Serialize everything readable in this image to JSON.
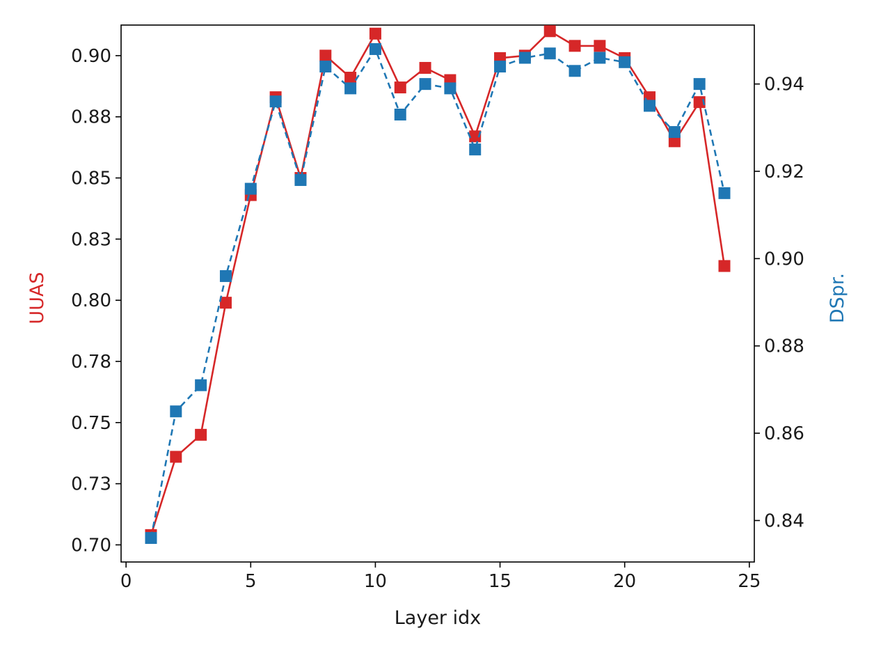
{
  "chart_data": {
    "type": "line",
    "title": "",
    "xlabel": "Layer idx",
    "ylabel": "UUAS",
    "y2label": "DSpr.",
    "xlim": [
      -0.2,
      25.2
    ],
    "ylim": [
      0.693,
      0.9125
    ],
    "y2lim": [
      0.8305,
      0.9535
    ],
    "xticks": [
      "0",
      "5",
      "10",
      "15",
      "20",
      "25"
    ],
    "yticks": [
      "0.70",
      "0.73",
      "0.75",
      "0.78",
      "0.80",
      "0.83",
      "0.85",
      "0.88",
      "0.90"
    ],
    "y2ticks": [
      "0.84",
      "0.86",
      "0.88",
      "0.90",
      "0.92",
      "0.94"
    ],
    "grid": false,
    "colors": {
      "uuas": "#d62728",
      "dspr": "#1f77b4"
    },
    "x": [
      1,
      2,
      3,
      4,
      5,
      6,
      7,
      8,
      9,
      10,
      11,
      12,
      13,
      14,
      15,
      16,
      17,
      18,
      19,
      20,
      21,
      22,
      23,
      24
    ],
    "series": [
      {
        "name": "UUAS",
        "axis": "left",
        "style": "solid",
        "marker": "square",
        "values": [
          0.704,
          0.736,
          0.745,
          0.799,
          0.843,
          0.883,
          0.85,
          0.9,
          0.891,
          0.909,
          0.887,
          0.895,
          0.89,
          0.867,
          0.899,
          0.9,
          0.91,
          0.904,
          0.904,
          0.899,
          0.883,
          0.865,
          0.881,
          0.814
        ]
      },
      {
        "name": "DSpr.",
        "axis": "right",
        "style": "dashed",
        "marker": "square",
        "values": [
          0.836,
          0.865,
          0.871,
          0.896,
          0.916,
          0.936,
          0.918,
          0.944,
          0.939,
          0.948,
          0.933,
          0.94,
          0.939,
          0.925,
          0.944,
          0.946,
          0.947,
          0.943,
          0.946,
          0.945,
          0.935,
          0.929,
          0.94,
          0.915
        ]
      }
    ]
  }
}
